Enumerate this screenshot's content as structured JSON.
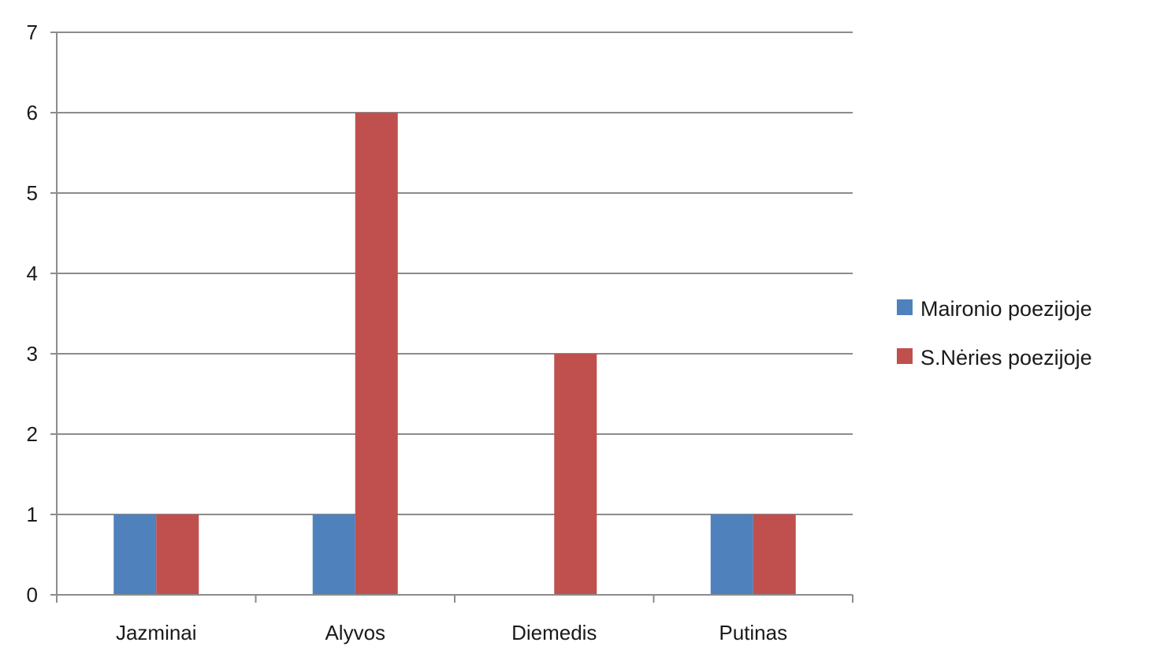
{
  "chart_data": {
    "type": "bar",
    "title": "",
    "xlabel": "",
    "ylabel": "",
    "categories": [
      "Jazminai",
      "Alyvos",
      "Diemedis",
      "Putinas"
    ],
    "series": [
      {
        "name": "Maironio poezijoje",
        "values": [
          1,
          1,
          0,
          1
        ],
        "color": "#4f81bd"
      },
      {
        "name": "S.Nėries poezijoje",
        "values": [
          1,
          6,
          3,
          1
        ],
        "color": "#c0504d"
      }
    ],
    "ylim": [
      0,
      7
    ],
    "yticks": [
      0,
      1,
      2,
      3,
      4,
      5,
      6,
      7
    ],
    "grid": true,
    "legend_position": "right"
  }
}
